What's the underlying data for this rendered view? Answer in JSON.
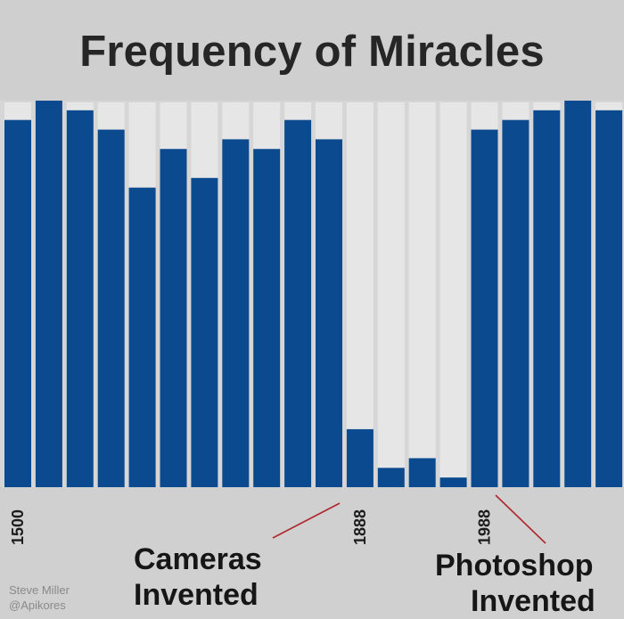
{
  "title": "Frequency of Miracles",
  "chart_data": {
    "type": "bar",
    "title": "Frequency of Miracles",
    "xlabel": "",
    "ylabel": "",
    "values": [
      38,
      40,
      39,
      37,
      31,
      35,
      32,
      36,
      35,
      38,
      36,
      6,
      2,
      3,
      1,
      37,
      38,
      39,
      40,
      39
    ],
    "x_tick_labels": [
      "1500",
      "1888",
      "1988"
    ],
    "ylim": [
      0,
      40
    ],
    "grid": false,
    "bar_color": "#0b4a8e"
  },
  "annotations": {
    "cameras_line1": "Cameras",
    "cameras_line2": "Invented",
    "photoshop_line1": "Photoshop",
    "photoshop_line2": "Invented"
  },
  "credit": {
    "author": "Steve Miller",
    "handle": "@Apikores"
  },
  "colors": {
    "bar": "#0b4a8e",
    "pointer_line": "#b0262e",
    "background": "#d6d6d6"
  }
}
